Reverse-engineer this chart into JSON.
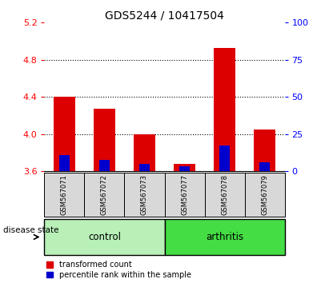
{
  "title": "GDS5244 / 10417504",
  "samples": [
    "GSM567071",
    "GSM567072",
    "GSM567073",
    "GSM567077",
    "GSM567078",
    "GSM567079"
  ],
  "transformed_count": [
    4.4,
    4.27,
    4.0,
    3.68,
    4.93,
    4.05
  ],
  "percentile_top": [
    3.77,
    3.72,
    3.68,
    3.65,
    3.88,
    3.7
  ],
  "bar_bottom": 3.6,
  "ylim": [
    3.6,
    5.2
  ],
  "yticks_left": [
    3.6,
    4.0,
    4.4,
    4.8,
    5.2
  ],
  "yticks_right": [
    0,
    25,
    50,
    75,
    100
  ],
  "grid_values": [
    4.0,
    4.4,
    4.8
  ],
  "red_color": "#DD0000",
  "blue_color": "#0000CC",
  "legend_red": "transformed count",
  "legend_blue": "percentile rank within the sample",
  "disease_state_label": "disease state",
  "tick_color_left": "red",
  "tick_color_right": "blue",
  "bar_width": 0.55,
  "sample_bg": "#D8D8D8",
  "control_color": "#B8F0B8",
  "arthritis_color": "#44DD44"
}
